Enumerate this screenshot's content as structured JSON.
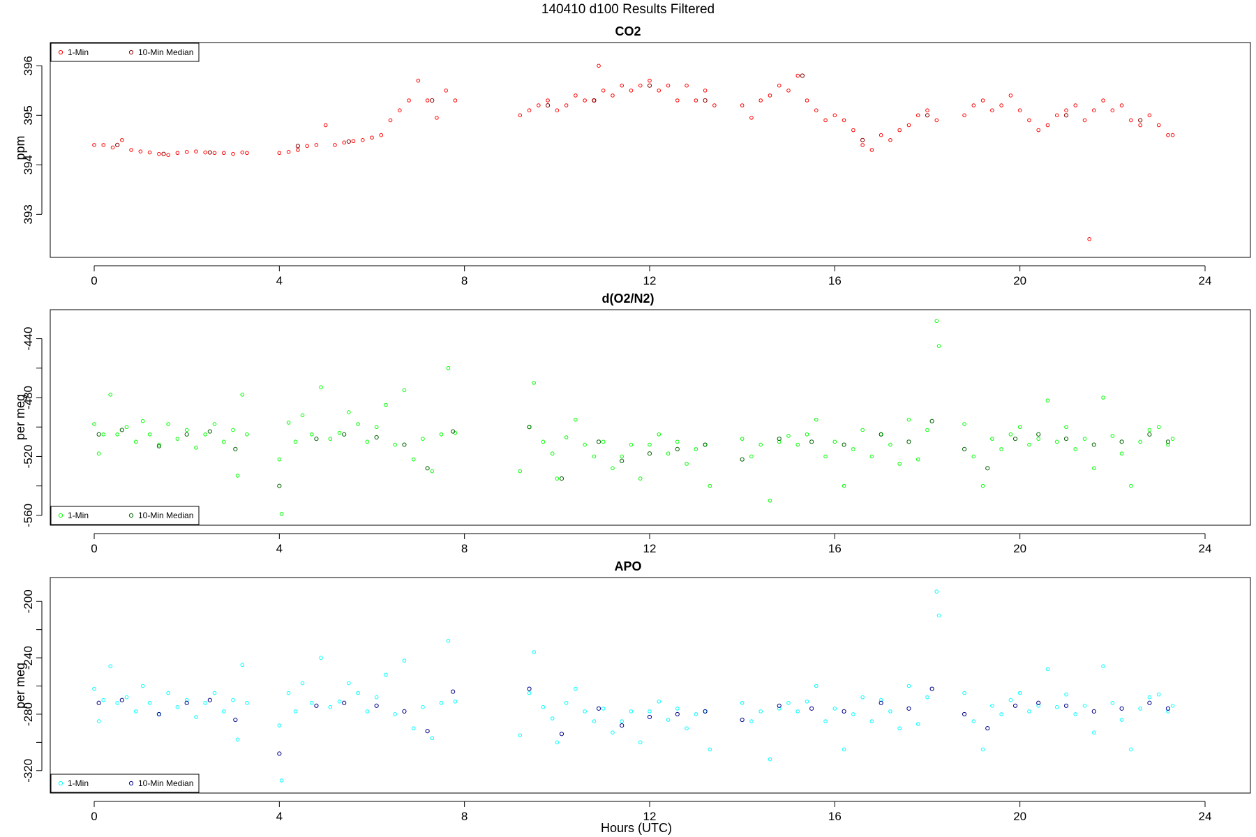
{
  "figure": {
    "title": "140410   d100   Results Filtered",
    "xlabel": "Hours (UTC)"
  },
  "legend": {
    "one_min": "1-Min",
    "ten_min": "10-Min Median"
  },
  "chart_data": [
    {
      "type": "scatter",
      "title": "CO2",
      "xlabel": "",
      "ylabel": "ppm",
      "xlim": [
        0,
        24
      ],
      "ylim": [
        392.3,
        396.3
      ],
      "xticks": [
        0,
        4,
        8,
        12,
        16,
        20,
        24
      ],
      "yticks": [
        393,
        394,
        395,
        396
      ],
      "grid": false,
      "legend_position": "top-left",
      "colors": {
        "one_min": "#ff0000",
        "ten_min": "#8b0000"
      },
      "series": [
        {
          "name": "1-Min",
          "x": [
            0.0,
            0.2,
            0.4,
            0.6,
            0.8,
            1.0,
            1.2,
            1.4,
            1.6,
            1.8,
            2.0,
            2.2,
            2.4,
            2.6,
            2.8,
            3.0,
            3.2,
            3.3,
            4.0,
            4.2,
            4.4,
            4.6,
            4.8,
            5.0,
            5.2,
            5.4,
            5.6,
            5.8,
            6.0,
            6.2,
            6.4,
            6.6,
            6.8,
            7.0,
            7.2,
            7.4,
            7.6,
            7.8,
            9.2,
            9.4,
            9.6,
            9.8,
            10.0,
            10.2,
            10.4,
            10.6,
            10.8,
            10.9,
            11.0,
            11.2,
            11.4,
            11.6,
            11.8,
            12.0,
            12.2,
            12.4,
            12.6,
            12.8,
            13.0,
            13.2,
            13.4,
            14.0,
            14.2,
            14.4,
            14.6,
            14.8,
            15.0,
            15.2,
            15.4,
            15.6,
            15.8,
            16.0,
            16.2,
            16.4,
            16.6,
            16.8,
            17.0,
            17.2,
            17.4,
            17.6,
            17.8,
            18.0,
            18.2,
            18.8,
            19.0,
            19.2,
            19.4,
            19.6,
            19.8,
            20.0,
            20.2,
            20.4,
            20.6,
            20.8,
            21.0,
            21.2,
            21.4,
            21.5,
            21.6,
            21.8,
            22.0,
            22.2,
            22.4,
            22.6,
            22.8,
            23.0,
            23.2,
            23.3
          ],
          "y": [
            394.4,
            394.4,
            394.35,
            394.5,
            394.3,
            394.27,
            394.25,
            394.22,
            394.2,
            394.24,
            394.26,
            394.27,
            394.25,
            394.24,
            394.24,
            394.22,
            394.25,
            394.24,
            394.24,
            394.26,
            394.3,
            394.38,
            394.4,
            394.8,
            394.4,
            394.45,
            394.48,
            394.5,
            394.55,
            394.6,
            394.9,
            395.1,
            395.3,
            395.7,
            395.3,
            394.95,
            395.5,
            395.3,
            395.0,
            395.1,
            395.2,
            395.3,
            395.1,
            395.2,
            395.4,
            395.3,
            395.3,
            396.0,
            395.5,
            395.4,
            395.6,
            395.5,
            395.6,
            395.7,
            395.5,
            395.6,
            395.3,
            395.6,
            395.3,
            395.5,
            395.2,
            395.2,
            394.95,
            395.3,
            395.4,
            395.6,
            395.5,
            395.8,
            395.3,
            395.1,
            394.9,
            395.0,
            394.9,
            394.7,
            394.4,
            394.3,
            394.6,
            394.5,
            394.7,
            394.8,
            395.0,
            395.1,
            394.9,
            395.0,
            395.2,
            395.3,
            395.1,
            395.2,
            395.4,
            395.1,
            394.9,
            394.7,
            394.8,
            395.0,
            395.1,
            395.2,
            394.9,
            392.5,
            395.1,
            395.3,
            395.1,
            395.2,
            394.9,
            394.8,
            395.0,
            394.8,
            394.6,
            394.6
          ]
        },
        {
          "name": "10-Min Median",
          "x": [
            0.5,
            1.5,
            2.5,
            4.4,
            5.5,
            7.3,
            9.8,
            10.8,
            12.0,
            13.2,
            15.3,
            16.6,
            18.0,
            21.0,
            22.6
          ],
          "y": [
            394.4,
            394.22,
            394.25,
            394.38,
            394.47,
            395.3,
            395.2,
            395.3,
            395.6,
            395.3,
            395.8,
            394.5,
            395.0,
            395.0,
            394.9
          ]
        }
      ]
    },
    {
      "type": "scatter",
      "title": "d(O2/N2)",
      "xlabel": "",
      "ylabel": "per meg",
      "xlim": [
        0,
        24
      ],
      "ylim": [
        -561,
        -426
      ],
      "xticks": [
        0,
        4,
        8,
        12,
        16,
        20,
        24
      ],
      "yticks": [
        -560,
        -540,
        -520,
        -500,
        -480,
        -460,
        -440
      ],
      "ytick_labels": [
        "-560",
        "",
        "-520",
        "",
        "-480",
        "",
        "-440"
      ],
      "grid": false,
      "legend_position": "bottom-left",
      "colors": {
        "one_min": "#00ff00",
        "ten_min": "#006400"
      },
      "series": [
        {
          "name": "1-Min",
          "x": [
            0.0,
            0.1,
            0.2,
            0.35,
            0.5,
            0.7,
            0.9,
            1.05,
            1.2,
            1.4,
            1.6,
            1.8,
            2.0,
            2.2,
            2.4,
            2.6,
            2.8,
            3.0,
            3.1,
            3.2,
            3.3,
            4.0,
            4.05,
            4.2,
            4.35,
            4.5,
            4.7,
            4.9,
            5.1,
            5.3,
            5.5,
            5.7,
            5.9,
            6.1,
            6.3,
            6.5,
            6.7,
            6.9,
            7.1,
            7.3,
            7.5,
            7.65,
            7.8,
            9.2,
            9.4,
            9.5,
            9.7,
            9.9,
            10.0,
            10.2,
            10.4,
            10.6,
            10.8,
            11.0,
            11.2,
            11.4,
            11.6,
            11.8,
            12.0,
            12.2,
            12.4,
            12.6,
            12.8,
            13.0,
            13.2,
            13.3,
            14.0,
            14.2,
            14.4,
            14.6,
            14.8,
            15.0,
            15.2,
            15.4,
            15.6,
            15.8,
            16.0,
            16.2,
            16.4,
            16.6,
            16.8,
            17.0,
            17.2,
            17.4,
            17.6,
            17.8,
            18.0,
            18.2,
            18.25,
            18.8,
            19.0,
            19.2,
            19.4,
            19.6,
            19.8,
            20.0,
            20.2,
            20.4,
            20.6,
            20.8,
            21.0,
            21.2,
            21.4,
            21.6,
            21.8,
            22.0,
            22.2,
            22.4,
            22.6,
            22.8,
            23.0,
            23.2,
            23.3
          ],
          "y": [
            -498,
            -518,
            -505,
            -478,
            -505,
            -500,
            -510,
            -496,
            -505,
            -512,
            -498,
            -508,
            -502,
            -514,
            -505,
            -498,
            -510,
            -502,
            -533,
            -478,
            -505,
            -522,
            -559,
            -497,
            -510,
            -492,
            -505,
            -473,
            -508,
            -504,
            -490,
            -498,
            -510,
            -500,
            -485,
            -512,
            -475,
            -522,
            -508,
            -530,
            -505,
            -460,
            -504,
            -530,
            -500,
            -470,
            -510,
            -518,
            -535,
            -507,
            -495,
            -512,
            -520,
            -510,
            -528,
            -520,
            -512,
            -535,
            -512,
            -505,
            -518,
            -510,
            -525,
            -515,
            -512,
            -540,
            -508,
            -520,
            -512,
            -550,
            -510,
            -506,
            -512,
            -505,
            -495,
            -520,
            -510,
            -540,
            -515,
            -502,
            -520,
            -505,
            -512,
            -525,
            -495,
            -522,
            -502,
            -428,
            -445,
            -498,
            -520,
            -540,
            -508,
            -515,
            -505,
            -500,
            -512,
            -508,
            -482,
            -510,
            -500,
            -515,
            -508,
            -528,
            -480,
            -506,
            -518,
            -540,
            -510,
            -502,
            -500,
            -512,
            -508
          ]
        },
        {
          "name": "10-Min Median",
          "x": [
            0.1,
            0.6,
            1.4,
            2.0,
            2.5,
            3.05,
            4.0,
            4.8,
            5.4,
            6.1,
            6.7,
            7.2,
            7.75,
            9.4,
            10.1,
            10.9,
            11.4,
            12.0,
            12.6,
            13.2,
            14.0,
            14.8,
            15.5,
            16.2,
            17.0,
            17.6,
            18.1,
            18.8,
            19.3,
            19.9,
            20.4,
            21.0,
            21.6,
            22.2,
            22.8,
            23.2
          ],
          "y": [
            -505,
            -502,
            -513,
            -505,
            -503,
            -515,
            -540,
            -508,
            -505,
            -507,
            -512,
            -528,
            -503,
            -500,
            -535,
            -510,
            -523,
            -518,
            -515,
            -512,
            -522,
            -508,
            -510,
            -512,
            -505,
            -510,
            -496,
            -515,
            -528,
            -508,
            -505,
            -508,
            -512,
            -510,
            -505,
            -510
          ]
        }
      ]
    },
    {
      "type": "scatter",
      "title": "APO",
      "xlabel": "Hours (UTC)",
      "ylabel": "per meg",
      "xlim": [
        0,
        24
      ],
      "ylim": [
        -330,
        -189
      ],
      "xticks": [
        0,
        4,
        8,
        12,
        16,
        20,
        24
      ],
      "yticks": [
        -320,
        -300,
        -280,
        -260,
        -240,
        -220,
        -200
      ],
      "ytick_labels": [
        "-320",
        "",
        "-280",
        "",
        "-240",
        "",
        "-200"
      ],
      "grid": false,
      "legend_position": "bottom-left",
      "colors": {
        "one_min": "#00ffff",
        "ten_min": "#00008b"
      },
      "series": [
        {
          "name": "1-Min",
          "x": [
            0.0,
            0.1,
            0.2,
            0.35,
            0.5,
            0.7,
            0.9,
            1.05,
            1.2,
            1.4,
            1.6,
            1.8,
            2.0,
            2.2,
            2.4,
            2.6,
            2.8,
            3.0,
            3.1,
            3.2,
            3.3,
            4.0,
            4.05,
            4.2,
            4.35,
            4.5,
            4.7,
            4.9,
            5.1,
            5.3,
            5.5,
            5.7,
            5.9,
            6.1,
            6.3,
            6.5,
            6.7,
            6.9,
            7.1,
            7.3,
            7.5,
            7.65,
            7.8,
            9.2,
            9.4,
            9.5,
            9.7,
            9.9,
            10.0,
            10.2,
            10.4,
            10.6,
            10.8,
            11.0,
            11.2,
            11.4,
            11.6,
            11.8,
            12.0,
            12.2,
            12.4,
            12.6,
            12.8,
            13.0,
            13.2,
            13.3,
            14.0,
            14.2,
            14.4,
            14.6,
            14.8,
            15.0,
            15.2,
            15.4,
            15.6,
            15.8,
            16.0,
            16.2,
            16.4,
            16.6,
            16.8,
            17.0,
            17.2,
            17.4,
            17.6,
            17.8,
            18.0,
            18.2,
            18.25,
            18.8,
            19.0,
            19.2,
            19.4,
            19.6,
            19.8,
            20.0,
            20.2,
            20.4,
            20.6,
            20.8,
            21.0,
            21.2,
            21.4,
            21.6,
            21.8,
            22.0,
            22.2,
            22.4,
            22.6,
            22.8,
            23.0,
            23.2,
            23.3
          ],
          "y": [
            -262,
            -285,
            -270,
            -246,
            -272,
            -268,
            -278,
            -260,
            -272,
            -280,
            -265,
            -275,
            -270,
            -282,
            -272,
            -265,
            -278,
            -270,
            -298,
            -245,
            -272,
            -288,
            -327,
            -265,
            -278,
            -258,
            -272,
            -240,
            -275,
            -271,
            -258,
            -265,
            -278,
            -268,
            -252,
            -280,
            -242,
            -290,
            -275,
            -297,
            -272,
            -228,
            -271,
            -295,
            -265,
            -236,
            -275,
            -283,
            -300,
            -272,
            -262,
            -278,
            -285,
            -276,
            -293,
            -285,
            -278,
            -300,
            -278,
            -271,
            -284,
            -276,
            -290,
            -280,
            -278,
            -305,
            -272,
            -285,
            -278,
            -312,
            -276,
            -272,
            -278,
            -271,
            -260,
            -285,
            -276,
            -305,
            -280,
            -268,
            -285,
            -270,
            -278,
            -290,
            -260,
            -287,
            -268,
            -193,
            -210,
            -265,
            -285,
            -305,
            -274,
            -280,
            -270,
            -265,
            -278,
            -274,
            -248,
            -275,
            -266,
            -280,
            -274,
            -293,
            -246,
            -272,
            -284,
            -305,
            -276,
            -268,
            -266,
            -278,
            -274
          ]
        },
        {
          "name": "10-Min Median",
          "x": [
            0.1,
            0.6,
            1.4,
            2.0,
            2.5,
            3.05,
            4.0,
            4.8,
            5.4,
            6.1,
            6.7,
            7.2,
            7.75,
            9.4,
            10.1,
            10.9,
            11.4,
            12.0,
            12.6,
            13.2,
            14.0,
            14.8,
            15.5,
            16.2,
            17.0,
            17.6,
            18.1,
            18.8,
            19.3,
            19.9,
            20.4,
            21.0,
            21.6,
            22.2,
            22.8,
            23.2
          ],
          "y": [
            -272,
            -270,
            -280,
            -272,
            -270,
            -284,
            -308,
            -274,
            -272,
            -274,
            -278,
            -292,
            -264,
            -262,
            -294,
            -276,
            -288,
            -282,
            -280,
            -278,
            -284,
            -274,
            -276,
            -278,
            -272,
            -276,
            -262,
            -280,
            -290,
            -274,
            -272,
            -274,
            -278,
            -276,
            -272,
            -276
          ]
        }
      ]
    }
  ]
}
